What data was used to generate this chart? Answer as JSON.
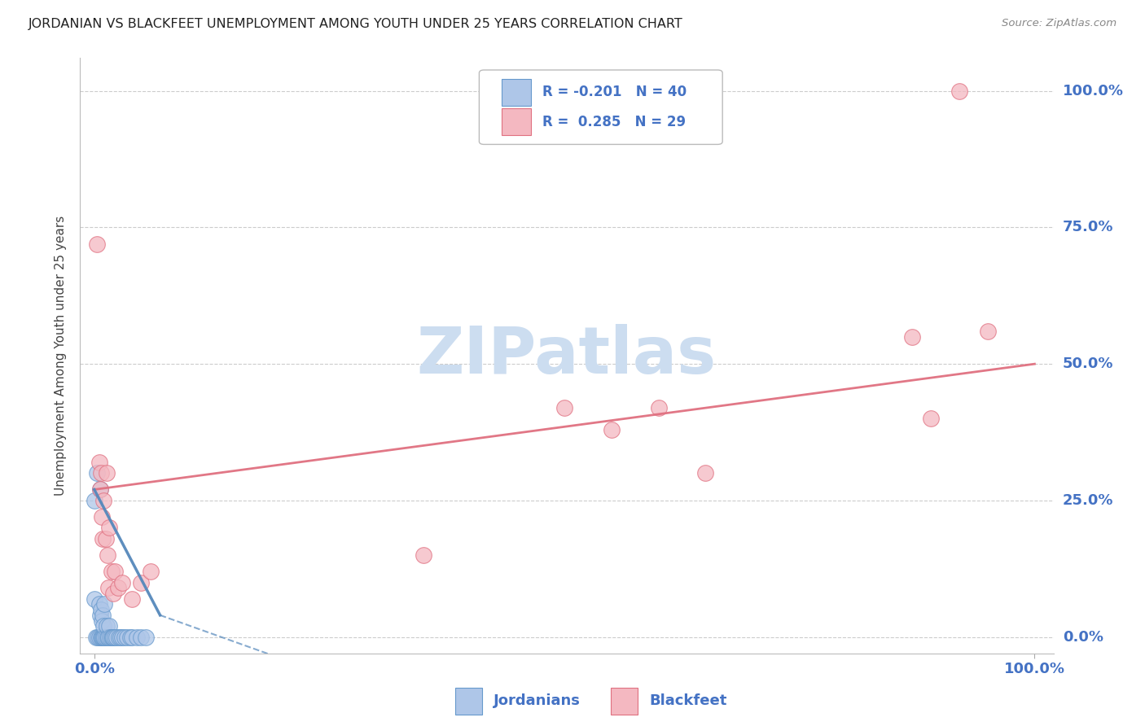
{
  "title": "JORDANIAN VS BLACKFEET UNEMPLOYMENT AMONG YOUTH UNDER 25 YEARS CORRELATION CHART",
  "source": "Source: ZipAtlas.com",
  "ylabel": "Unemployment Among Youth under 25 years",
  "legend_label1": "Jordanians",
  "legend_label2": "Blackfeet",
  "r_jordanian": -0.201,
  "n_jordanian": 40,
  "r_blackfeet": 0.285,
  "n_blackfeet": 29,
  "color_jordanian_fill": "#aec6e8",
  "color_jordanian_edge": "#6699cc",
  "color_blackfeet_fill": "#f4b8c1",
  "color_blackfeet_edge": "#e07080",
  "color_line_jordanian": "#5588bb",
  "color_line_blackfeet": "#e07080",
  "color_text_blue": "#4472C4",
  "color_grid": "#cccccc",
  "watermark_color": "#ccddf0",
  "jordanian_x": [
    0.0,
    0.0,
    0.002,
    0.003,
    0.004,
    0.005,
    0.005,
    0.006,
    0.006,
    0.007,
    0.007,
    0.008,
    0.008,
    0.009,
    0.009,
    0.01,
    0.01,
    0.011,
    0.011,
    0.012,
    0.013,
    0.014,
    0.015,
    0.016,
    0.017,
    0.018,
    0.019,
    0.02,
    0.022,
    0.024,
    0.026,
    0.028,
    0.03,
    0.032,
    0.035,
    0.038,
    0.04,
    0.045,
    0.05,
    0.055
  ],
  "jordanian_y": [
    0.25,
    0.07,
    0.0,
    0.3,
    0.0,
    0.0,
    0.06,
    0.27,
    0.04,
    0.0,
    0.05,
    0.0,
    0.03,
    0.04,
    0.0,
    0.0,
    0.02,
    0.0,
    0.06,
    0.0,
    0.02,
    0.0,
    0.0,
    0.02,
    0.0,
    0.0,
    0.0,
    0.0,
    0.0,
    0.0,
    0.0,
    0.0,
    0.0,
    0.0,
    0.0,
    0.0,
    0.0,
    0.0,
    0.0,
    0.0
  ],
  "blackfeet_x": [
    0.003,
    0.005,
    0.006,
    0.007,
    0.008,
    0.009,
    0.01,
    0.012,
    0.013,
    0.014,
    0.015,
    0.016,
    0.018,
    0.02,
    0.022,
    0.025,
    0.03,
    0.04,
    0.05,
    0.06,
    0.35,
    0.5,
    0.55,
    0.6,
    0.65,
    0.87,
    0.89,
    0.92,
    0.95
  ],
  "blackfeet_y": [
    0.72,
    0.32,
    0.27,
    0.3,
    0.22,
    0.18,
    0.25,
    0.18,
    0.3,
    0.15,
    0.09,
    0.2,
    0.12,
    0.08,
    0.12,
    0.09,
    0.1,
    0.07,
    0.1,
    0.12,
    0.15,
    0.42,
    0.38,
    0.42,
    0.3,
    0.55,
    0.4,
    1.0,
    0.56
  ],
  "xlim": [
    0.0,
    1.0
  ],
  "ylim": [
    0.0,
    1.0
  ],
  "ytick_positions": [
    0.0,
    0.25,
    0.5,
    0.75,
    1.0
  ],
  "ytick_labels": [
    "0.0%",
    "25.0%",
    "50.0%",
    "75.0%",
    "100.0%"
  ],
  "xtick_positions": [
    0.0,
    1.0
  ],
  "xtick_labels": [
    "0.0%",
    "100.0%"
  ]
}
